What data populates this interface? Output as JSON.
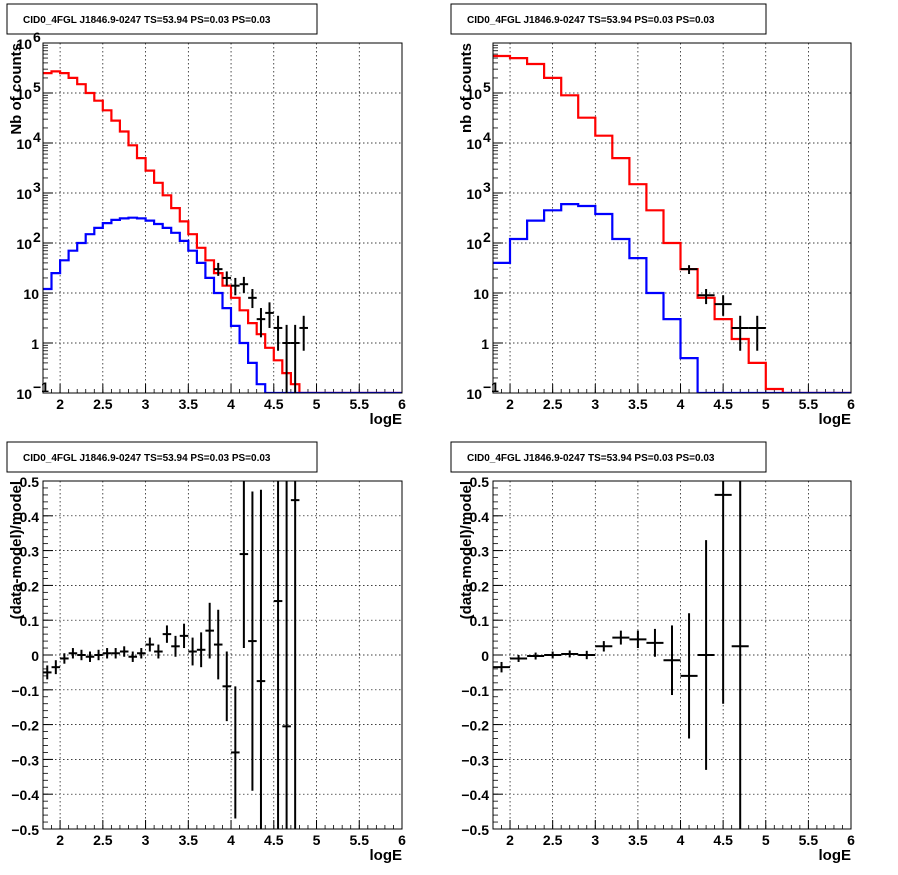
{
  "chart_data": [
    {
      "type": "histogram",
      "title": "CID0_4FGL J1846.9-0247 TS=53.94 PS=0.03 PS=0.03",
      "xlabel": "logE",
      "ylabel": "Nb of counts",
      "xlim": [
        1.8,
        6
      ],
      "ylim": [
        0.1,
        1000000
      ],
      "yscale": "log",
      "grid": true,
      "x_ticks": [
        "2",
        "2.5",
        "3",
        "3.5",
        "4",
        "4.5",
        "5",
        "5.5",
        "6"
      ],
      "y_ticks": [
        {
          "v": 0.1,
          "m": "10",
          "e": "−1"
        },
        {
          "v": 1,
          "m": "1",
          "e": ""
        },
        {
          "v": 10,
          "m": "10",
          "e": ""
        },
        {
          "v": 100,
          "m": "10",
          "e": "2"
        },
        {
          "v": 1000,
          "m": "10",
          "e": "3"
        },
        {
          "v": 10000,
          "m": "10",
          "e": "4"
        },
        {
          "v": 100000,
          "m": "10",
          "e": "5"
        },
        {
          "v": 1000000,
          "m": "10",
          "e": "6"
        }
      ],
      "bin_edges_start": 1.8,
      "bin_width": 0.1,
      "series": [
        {
          "color": "#ff0000",
          "kind": "step",
          "values": [
            250000,
            270000,
            250000,
            200000,
            150000,
            100000,
            70000,
            45000,
            28000,
            17000,
            9000,
            5000,
            2800,
            1600,
            900,
            500,
            270,
            150,
            80,
            45,
            25,
            14,
            8,
            4.5,
            2.5,
            1.5,
            0.8,
            0.45,
            0.25,
            0.15,
            0.1,
            0.1,
            0.1,
            0.1,
            0.1,
            0.1,
            0.1,
            0.1,
            0.1,
            0.1,
            0.1,
            0.1
          ]
        },
        {
          "color": "#0000ff",
          "kind": "step",
          "values": [
            12,
            25,
            45,
            70,
            100,
            150,
            200,
            250,
            290,
            310,
            320,
            310,
            280,
            240,
            200,
            160,
            110,
            70,
            40,
            20,
            10,
            5,
            2.2,
            1,
            0.4,
            0.15,
            0.05,
            0.05,
            0.05,
            0.05,
            0.05,
            0.05,
            0.05,
            0.05,
            0.05,
            0.05,
            0.05,
            0.05,
            0.05,
            0.05,
            0.05,
            0.05
          ]
        },
        {
          "color": "#000000",
          "kind": "points",
          "points": [
            {
              "x": 3.85,
              "y": 30,
              "lo": 22,
              "hi": 40
            },
            {
              "x": 3.95,
              "y": 20,
              "lo": 14,
              "hi": 27
            },
            {
              "x": 4.05,
              "y": 14,
              "lo": 9,
              "hi": 20
            },
            {
              "x": 4.15,
              "y": 15,
              "lo": 10,
              "hi": 21
            },
            {
              "x": 4.25,
              "y": 8,
              "lo": 5,
              "hi": 12
            },
            {
              "x": 4.35,
              "y": 3,
              "lo": 1.3,
              "hi": 5
            },
            {
              "x": 4.45,
              "y": 4,
              "lo": 2,
              "hi": 6.5
            },
            {
              "x": 4.55,
              "y": 2,
              "lo": 0.7,
              "hi": 3.5
            },
            {
              "x": 4.65,
              "y": 1,
              "lo": 0.1,
              "hi": 2.3
            },
            {
              "x": 4.75,
              "y": 1,
              "lo": 0.1,
              "hi": 2.3
            },
            {
              "x": 4.85,
              "y": 2,
              "lo": 0.7,
              "hi": 3.5
            }
          ]
        }
      ]
    },
    {
      "type": "histogram",
      "title": "CID0_4FGL J1846.9-0247 TS=53.94 PS=0.03 PS=0.03",
      "xlabel": "logE",
      "ylabel": "nb of counts",
      "xlim": [
        1.8,
        6
      ],
      "ylim": [
        0.1,
        1000000
      ],
      "yscale": "log",
      "grid": true,
      "x_ticks": [
        "2",
        "2.5",
        "3",
        "3.5",
        "4",
        "4.5",
        "5",
        "5.5",
        "6"
      ],
      "y_ticks": [
        {
          "v": 0.1,
          "m": "10",
          "e": "−1"
        },
        {
          "v": 1,
          "m": "1",
          "e": ""
        },
        {
          "v": 10,
          "m": "10",
          "e": ""
        },
        {
          "v": 100,
          "m": "10",
          "e": "2"
        },
        {
          "v": 1000,
          "m": "10",
          "e": "3"
        },
        {
          "v": 10000,
          "m": "10",
          "e": "4"
        },
        {
          "v": 100000,
          "m": "10",
          "e": "5"
        }
      ],
      "bin_edges_start": 1.8,
      "bin_width": 0.2,
      "series": [
        {
          "color": "#ff0000",
          "kind": "step",
          "values": [
            550000,
            500000,
            380000,
            200000,
            90000,
            32000,
            14000,
            5000,
            1500,
            450,
            100,
            30,
            8,
            3,
            1.2,
            0.4,
            0.12,
            0.1,
            0.1,
            0.1,
            0.1
          ]
        },
        {
          "color": "#0000ff",
          "kind": "step",
          "values": [
            40,
            120,
            280,
            450,
            600,
            550,
            380,
            120,
            50,
            10,
            3,
            0.5,
            0.05,
            0.05,
            0.05,
            0.05,
            0.05,
            0.05,
            0.05,
            0.05,
            0.05
          ]
        },
        {
          "color": "#000000",
          "kind": "points",
          "points": [
            {
              "x": 4.1,
              "y": 30,
              "lo": 24,
              "hi": 36
            },
            {
              "x": 4.3,
              "y": 9,
              "lo": 6,
              "hi": 12
            },
            {
              "x": 4.5,
              "y": 6,
              "lo": 3.5,
              "hi": 9
            },
            {
              "x": 4.7,
              "y": 2,
              "lo": 0.7,
              "hi": 3.5
            },
            {
              "x": 4.9,
              "y": 2,
              "lo": 0.7,
              "hi": 3.5
            }
          ]
        }
      ]
    },
    {
      "type": "scatter",
      "title": "CID0_4FGL J1846.9-0247 TS=53.94 PS=0.03 PS=0.03",
      "xlabel": "logE",
      "ylabel": "(data-model)/model",
      "xlim": [
        1.8,
        6
      ],
      "ylim": [
        -0.5,
        0.5
      ],
      "grid": true,
      "x_ticks": [
        "2",
        "2.5",
        "3",
        "3.5",
        "4",
        "4.5",
        "5",
        "5.5",
        "6"
      ],
      "y_ticks": [
        "−0.5",
        "−0.4",
        "−0.3",
        "−0.2",
        "−0.1",
        "0",
        "0.1",
        "0.2",
        "0.3",
        "0.4",
        "0.5"
      ],
      "series": [
        {
          "color": "#000000",
          "kind": "errorbars",
          "half_width": 0.05,
          "points": [
            {
              "x": 1.85,
              "y": -0.05,
              "err": 0.02
            },
            {
              "x": 1.95,
              "y": -0.035,
              "err": 0.02
            },
            {
              "x": 2.05,
              "y": -0.01,
              "err": 0.015
            },
            {
              "x": 2.15,
              "y": 0.005,
              "err": 0.015
            },
            {
              "x": 2.25,
              "y": 0.0,
              "err": 0.015
            },
            {
              "x": 2.35,
              "y": -0.005,
              "err": 0.015
            },
            {
              "x": 2.45,
              "y": 0.0,
              "err": 0.015
            },
            {
              "x": 2.55,
              "y": 0.005,
              "err": 0.015
            },
            {
              "x": 2.65,
              "y": 0.005,
              "err": 0.015
            },
            {
              "x": 2.75,
              "y": 0.01,
              "err": 0.015
            },
            {
              "x": 2.85,
              "y": -0.005,
              "err": 0.015
            },
            {
              "x": 2.95,
              "y": 0.005,
              "err": 0.015
            },
            {
              "x": 3.05,
              "y": 0.03,
              "err": 0.02
            },
            {
              "x": 3.15,
              "y": 0.01,
              "err": 0.02
            },
            {
              "x": 3.25,
              "y": 0.06,
              "err": 0.025
            },
            {
              "x": 3.35,
              "y": 0.025,
              "err": 0.03
            },
            {
              "x": 3.45,
              "y": 0.055,
              "err": 0.035
            },
            {
              "x": 3.55,
              "y": 0.01,
              "err": 0.04
            },
            {
              "x": 3.65,
              "y": 0.015,
              "err": 0.05
            },
            {
              "x": 3.75,
              "y": 0.07,
              "err": 0.08
            },
            {
              "x": 3.85,
              "y": 0.03,
              "err": 0.1
            },
            {
              "x": 3.95,
              "y": -0.09,
              "err": 0.1
            },
            {
              "x": 4.05,
              "y": -0.28,
              "err": 0.19
            },
            {
              "x": 4.15,
              "y": 0.29,
              "err": 0.27
            },
            {
              "x": 4.25,
              "y": 0.04,
              "err": 0.43
            },
            {
              "x": 4.35,
              "y": -0.075,
              "err": 0.55
            },
            {
              "x": 4.55,
              "y": 0.155,
              "err": 0.7
            },
            {
              "x": 4.65,
              "y": -0.205,
              "err": 0.9
            },
            {
              "x": 4.75,
              "y": 0.445,
              "err": 0.95
            }
          ]
        }
      ]
    },
    {
      "type": "scatter",
      "title": "CID0_4FGL J1846.9-0247 TS=53.94 PS=0.03 PS=0.03",
      "xlabel": "logE",
      "ylabel": "(data-model)/model",
      "xlim": [
        1.8,
        6
      ],
      "ylim": [
        -0.5,
        0.5
      ],
      "grid": true,
      "x_ticks": [
        "2",
        "2.5",
        "3",
        "3.5",
        "4",
        "4.5",
        "5",
        "5.5",
        "6"
      ],
      "y_ticks": [
        "−0.5",
        "−0.4",
        "−0.3",
        "−0.2",
        "−0.1",
        "0",
        "0.1",
        "0.2",
        "0.3",
        "0.4",
        "0.5"
      ],
      "series": [
        {
          "color": "#000000",
          "kind": "errorbars",
          "half_width": 0.1,
          "points": [
            {
              "x": 1.9,
              "y": -0.035,
              "err": 0.015
            },
            {
              "x": 2.1,
              "y": -0.01,
              "err": 0.01
            },
            {
              "x": 2.3,
              "y": -0.003,
              "err": 0.01
            },
            {
              "x": 2.5,
              "y": 0.0,
              "err": 0.01
            },
            {
              "x": 2.7,
              "y": 0.003,
              "err": 0.01
            },
            {
              "x": 2.9,
              "y": 0.0,
              "err": 0.012
            },
            {
              "x": 3.1,
              "y": 0.025,
              "err": 0.015
            },
            {
              "x": 3.3,
              "y": 0.05,
              "err": 0.02
            },
            {
              "x": 3.5,
              "y": 0.045,
              "err": 0.025
            },
            {
              "x": 3.7,
              "y": 0.035,
              "err": 0.04
            },
            {
              "x": 3.9,
              "y": -0.015,
              "err": 0.1
            },
            {
              "x": 4.1,
              "y": -0.06,
              "err": 0.18
            },
            {
              "x": 4.3,
              "y": 0.0,
              "err": 0.33
            },
            {
              "x": 4.5,
              "y": 0.46,
              "err": 0.6
            },
            {
              "x": 4.7,
              "y": 0.025,
              "err": 0.75
            }
          ]
        }
      ]
    }
  ]
}
